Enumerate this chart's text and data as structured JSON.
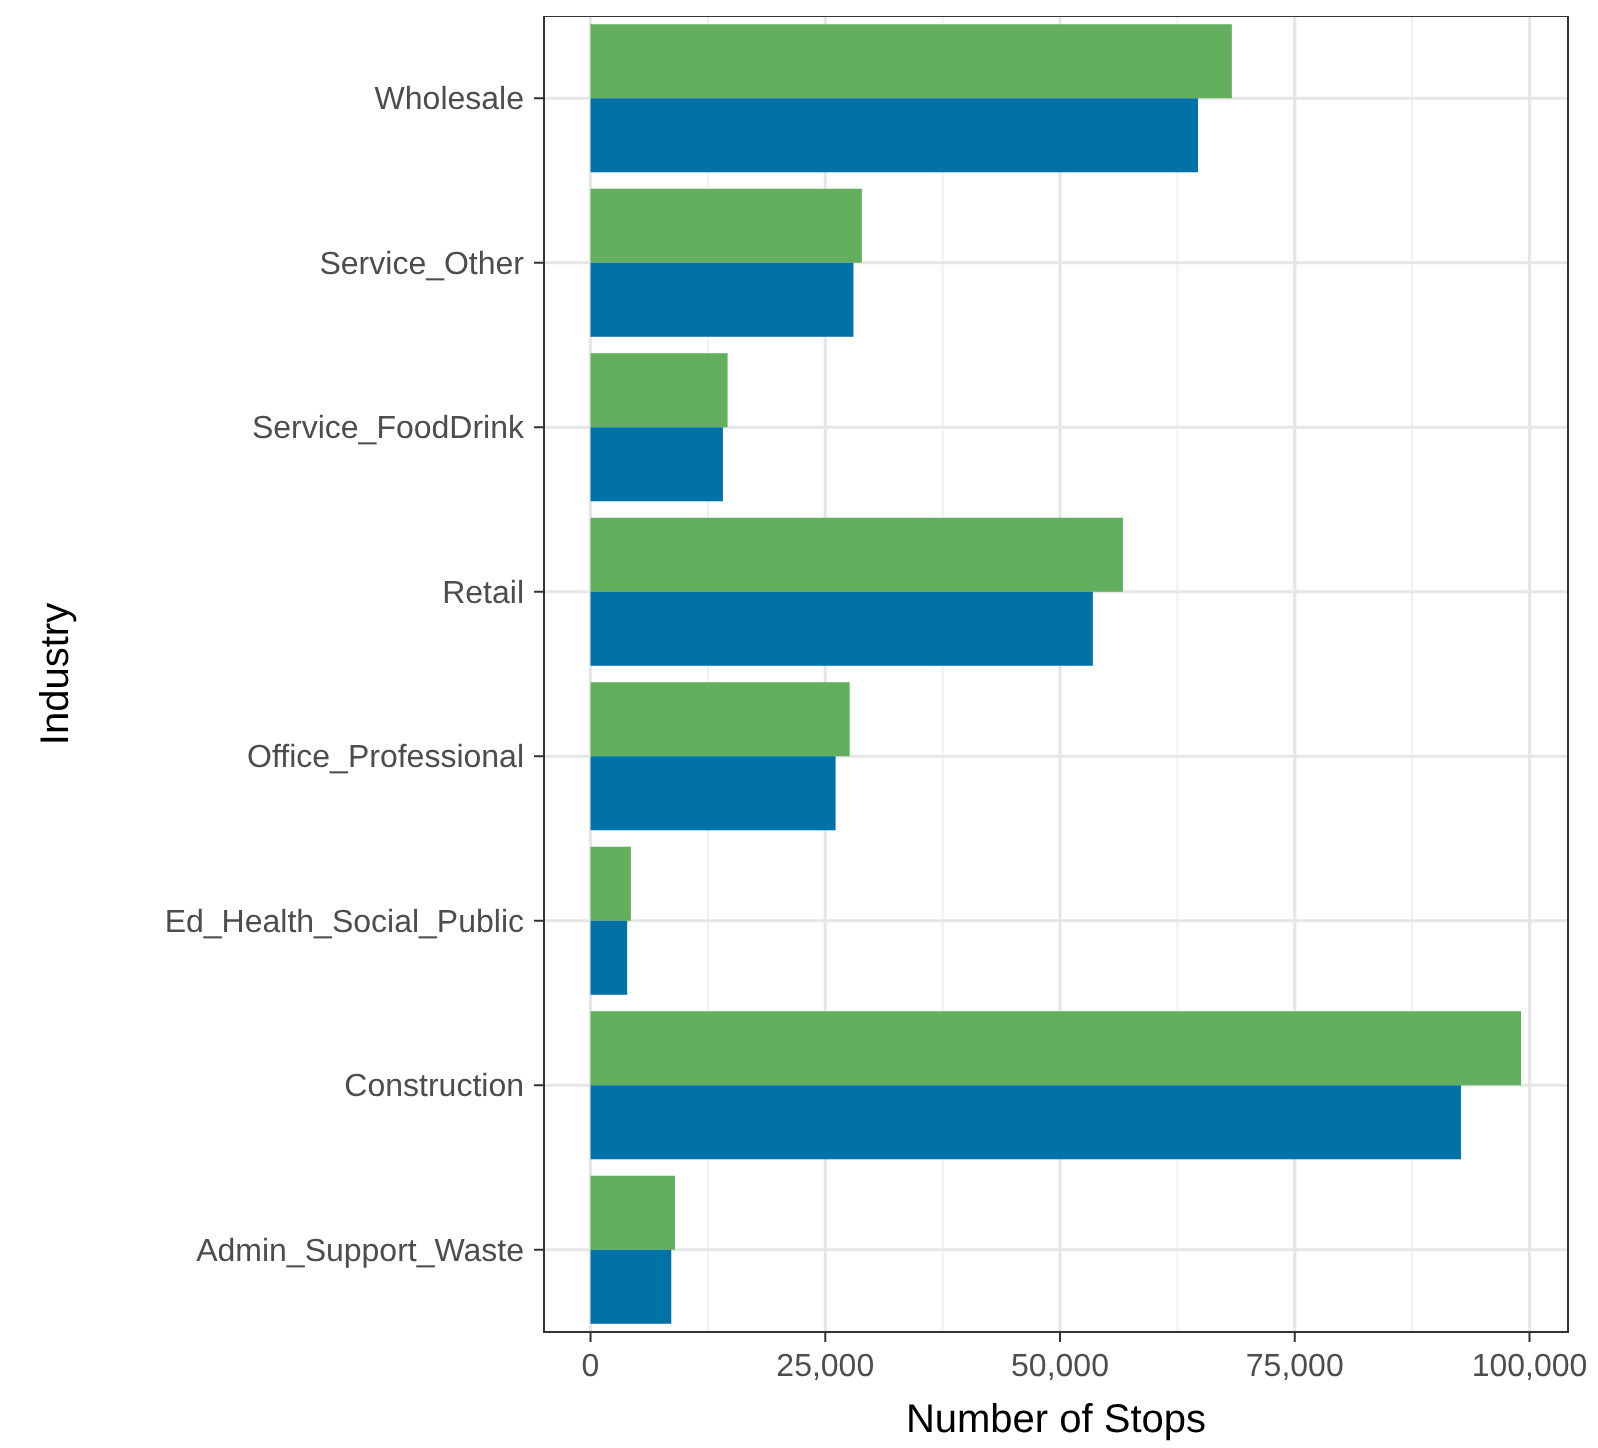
{
  "chart_data": {
    "type": "bar",
    "orientation": "horizontal",
    "xlabel": "Number of Stops",
    "ylabel": "Industry",
    "categories": [
      "Wholesale",
      "Service_Other",
      "Service_FoodDrink",
      "Retail",
      "Office_Professional",
      "Ed_Health_Social_Public",
      "Construction",
      "Admin_Support_Waste"
    ],
    "series": [
      {
        "color": "#62b05e",
        "values": [
          68300,
          28900,
          14600,
          56700,
          27600,
          4300,
          99100,
          9000
        ]
      },
      {
        "color": "#0072a8",
        "values": [
          64700,
          28000,
          14100,
          53500,
          26100,
          3900,
          92700,
          8600
        ]
      }
    ],
    "xlim": [
      -4955,
      104100
    ],
    "xticks": [
      {
        "value": 0,
        "label": "0"
      },
      {
        "value": 25000,
        "label": "25,000"
      },
      {
        "value": 50000,
        "label": "50,000"
      },
      {
        "value": 75000,
        "label": "75,000"
      },
      {
        "value": 100000,
        "label": "100,000"
      }
    ],
    "grid": true
  }
}
